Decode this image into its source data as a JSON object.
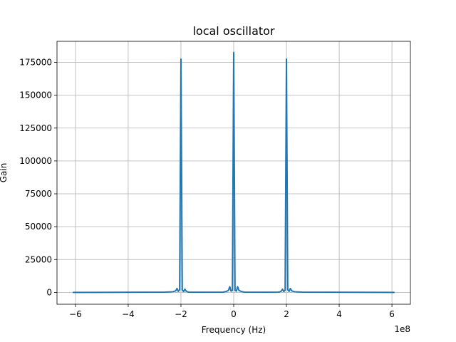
{
  "chart_data": {
    "type": "line",
    "title": "local oscillator",
    "xlabel": "Frequency (Hz)",
    "ylabel": "Gain",
    "x_scale_label": "1e8",
    "x_scale": 100000000,
    "xlim": [
      -6.7,
      6.7
    ],
    "ylim": [
      -9000,
      191000
    ],
    "grid": true,
    "x_ticks": [
      -6,
      -4,
      -2,
      0,
      2,
      4,
      6
    ],
    "x_tick_labels": [
      "−6",
      "−4",
      "−2",
      "0",
      "2",
      "4",
      "6"
    ],
    "y_ticks": [
      0,
      25000,
      50000,
      75000,
      100000,
      125000,
      150000,
      175000
    ],
    "y_tick_labels": [
      "0",
      "25000",
      "50000",
      "75000",
      "100000",
      "125000",
      "150000",
      "175000"
    ],
    "series": [
      {
        "color": "#1f77b4",
        "x": [
          -6.1,
          -2.6,
          -2.3,
          -2.2,
          -2.15,
          -2.1,
          -2.05,
          -2.0,
          -1.95,
          -1.9,
          -1.85,
          -1.8,
          -1.75,
          -1.7,
          -1.4,
          -0.4,
          -0.3,
          -0.2,
          -0.15,
          -0.1,
          -0.05,
          0.0,
          0.05,
          0.1,
          0.15,
          0.2,
          0.3,
          0.4,
          1.4,
          1.7,
          1.75,
          1.8,
          1.85,
          1.9,
          1.95,
          2.0,
          2.05,
          2.1,
          2.15,
          2.2,
          2.3,
          2.6,
          6.1
        ],
        "y": [
          0,
          200,
          500,
          1200,
          3000,
          800,
          2000,
          177500,
          1800,
          600,
          2500,
          900,
          400,
          200,
          150,
          200,
          600,
          1500,
          4300,
          1000,
          1500,
          182500,
          1500,
          1000,
          4300,
          1500,
          600,
          200,
          150,
          200,
          400,
          900,
          2500,
          600,
          1800,
          177500,
          2000,
          800,
          3000,
          1200,
          500,
          200,
          0
        ]
      }
    ]
  }
}
